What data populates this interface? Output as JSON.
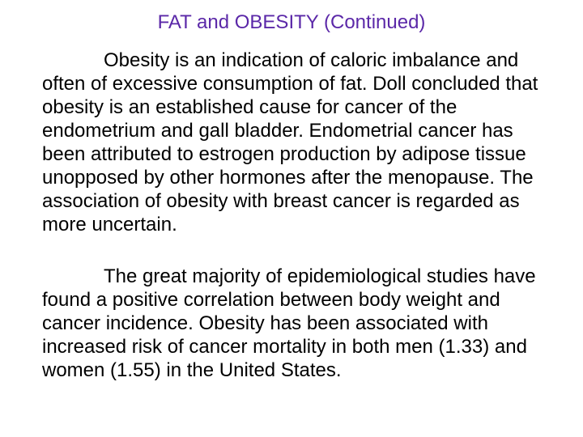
{
  "slide": {
    "title": "FAT and OBESITY (Continued)",
    "title_color": "#5B28A8",
    "text_color": "#000000",
    "background_color": "#FFFFFF",
    "paragraphs": [
      "Obesity is an indication of caloric imbalance and often of excessive consumption of fat. Doll concluded that obesity is an established cause for cancer of the endometrium and gall bladder. Endometrial cancer has been attributed to estrogen production by adipose tissue unopposed by other hormones after the menopause. The association of obesity with breast cancer is regarded as more uncertain.",
      "The great majority of epidemiological studies have found a positive correlation between body weight and cancer incidence. Obesity has been associated with increased risk of cancer mortality in both men (1.33) and women (1.55) in the United States."
    ]
  }
}
